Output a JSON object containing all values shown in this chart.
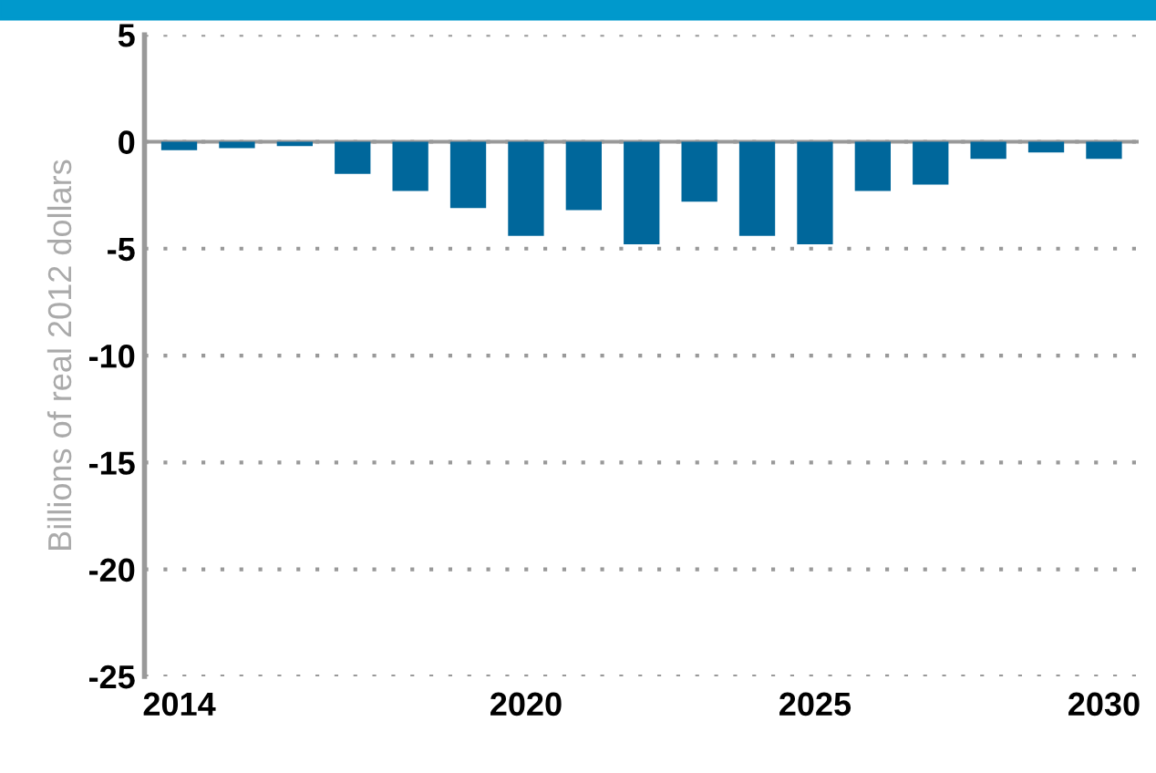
{
  "chart_data": {
    "type": "bar",
    "ylabel": "Billions of real 2012 dollars",
    "categories": [
      "2014",
      null,
      null,
      null,
      null,
      null,
      "2020",
      null,
      null,
      null,
      null,
      "2025",
      null,
      null,
      null,
      null,
      "2030"
    ],
    "values": [
      -0.4,
      -0.3,
      -0.2,
      -1.5,
      -2.3,
      -3.1,
      -4.4,
      -3.2,
      -4.8,
      -2.8,
      -4.4,
      -4.8,
      -2.3,
      -2.0,
      -0.8,
      -0.5,
      -0.8
    ],
    "color": "#00679b",
    "ylim": [
      -25,
      5
    ],
    "yticks": [
      -25,
      -20,
      -15,
      -10,
      -5,
      0,
      5
    ],
    "grid": "y"
  }
}
